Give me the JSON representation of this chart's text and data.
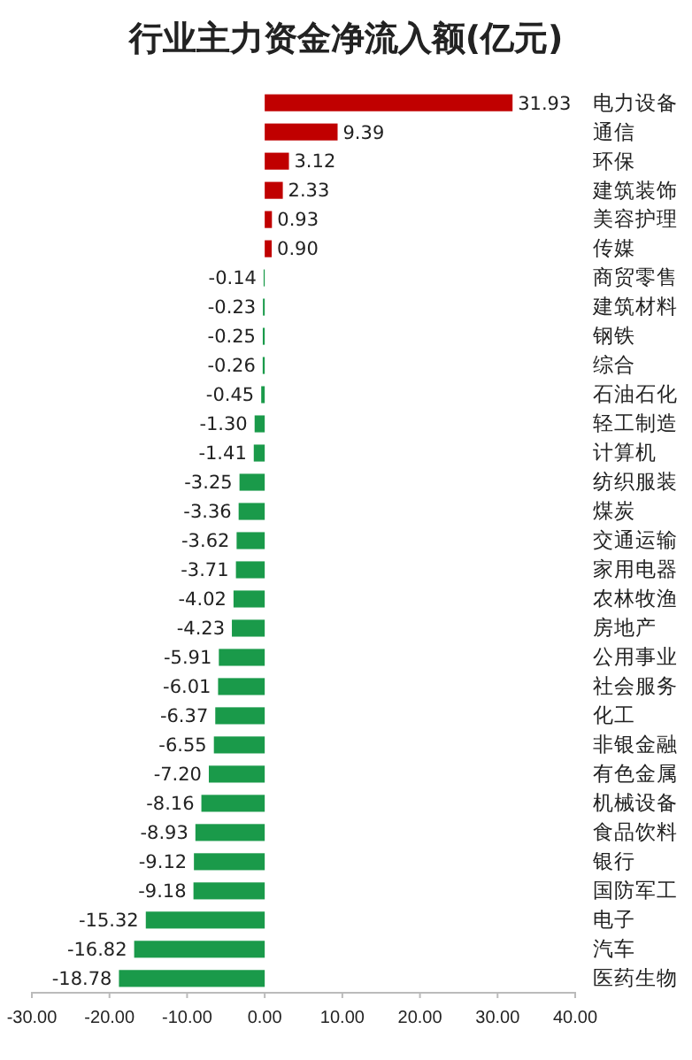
{
  "chart_data": {
    "type": "bar",
    "orientation": "horizontal",
    "title": "行业主力资金净流入额(亿元)",
    "categories": [
      "电力设备",
      "通信",
      "环保",
      "建筑装饰",
      "美容护理",
      "传媒",
      "商贸零售",
      "建筑材料",
      "钢铁",
      "综合",
      "石油石化",
      "轻工制造",
      "计算机",
      "纺织服装",
      "煤炭",
      "交通运输",
      "家用电器",
      "农林牧渔",
      "房地产",
      "公用事业",
      "社会服务",
      "化工",
      "非银金融",
      "有色金属",
      "机械设备",
      "食品饮料",
      "银行",
      "国防军工",
      "电子",
      "汽车",
      "医药生物"
    ],
    "values": [
      31.93,
      9.39,
      3.12,
      2.33,
      0.93,
      0.9,
      -0.14,
      -0.23,
      -0.25,
      -0.26,
      -0.45,
      -1.3,
      -1.41,
      -3.25,
      -3.36,
      -3.62,
      -3.71,
      -4.02,
      -4.23,
      -5.91,
      -6.01,
      -6.37,
      -6.55,
      -7.2,
      -8.16,
      -8.93,
      -9.12,
      -9.18,
      -15.32,
      -16.82,
      -18.78
    ],
    "value_labels": [
      "31.93",
      "9.39",
      "3.12",
      "2.33",
      "0.93",
      "0.90",
      "-0.14",
      "-0.23",
      "-0.25",
      "-0.26",
      "-0.45",
      "-1.30",
      "-1.41",
      "-3.25",
      "-3.36",
      "-3.62",
      "-3.71",
      "-4.02",
      "-4.23",
      "-5.91",
      "-6.01",
      "-6.37",
      "-6.55",
      "-7.20",
      "-8.16",
      "-8.93",
      "-9.12",
      "-9.18",
      "-15.32",
      "-16.82",
      "-18.78"
    ],
    "colors": [
      "#c00000",
      "#c00000",
      "#c00000",
      "#c00000",
      "#c00000",
      "#c00000",
      "#1a9a4a",
      "#1a9a4a",
      "#1a9a4a",
      "#1a9a4a",
      "#1a9a4a",
      "#1a9a4a",
      "#1a9a4a",
      "#1a9a4a",
      "#1a9a4a",
      "#1a9a4a",
      "#1a9a4a",
      "#1a9a4a",
      "#1a9a4a",
      "#1a9a4a",
      "#1a9a4a",
      "#1a9a4a",
      "#1a9a4a",
      "#1a9a4a",
      "#1a9a4a",
      "#1a9a4a",
      "#1a9a4a",
      "#1a9a4a",
      "#1a9a4a",
      "#1a9a4a",
      "#1a9a4a"
    ],
    "xlim": [
      -30,
      40
    ],
    "xticks": [
      {
        "value": -30,
        "label": "-30.00"
      },
      {
        "value": -20,
        "label": "-20.00"
      },
      {
        "value": -10,
        "label": "-10.00"
      },
      {
        "value": 0,
        "label": "0.00"
      },
      {
        "value": 10,
        "label": "10.00"
      },
      {
        "value": 20,
        "label": "20.00"
      },
      {
        "value": 30,
        "label": "30.00"
      },
      {
        "value": 40,
        "label": "40.00"
      }
    ],
    "grid": false
  }
}
